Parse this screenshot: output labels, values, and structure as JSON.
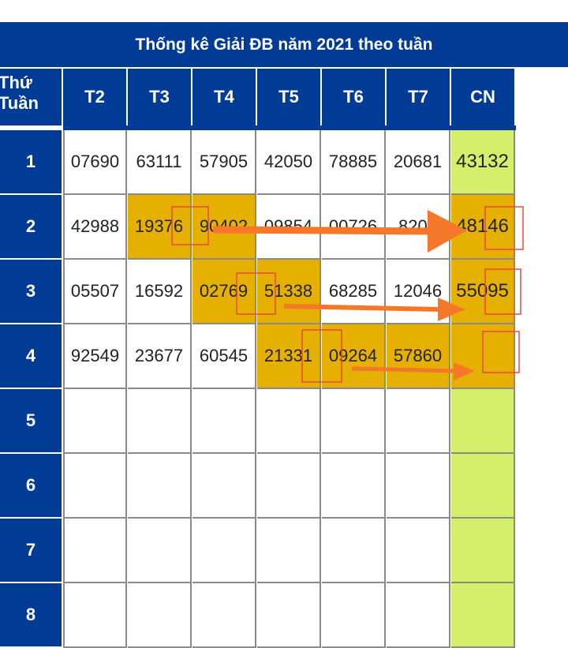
{
  "title": "Thống kê Giải ĐB năm 2021 theo tuần",
  "corner": {
    "line1": "Thứ",
    "line2": "Tuần"
  },
  "days": [
    "T2",
    "T3",
    "T4",
    "T5",
    "T6",
    "T7",
    "CN"
  ],
  "weeks": [
    "1",
    "2",
    "3",
    "4",
    "5",
    "6",
    "7",
    "8"
  ],
  "rows": [
    [
      "07690",
      "63111",
      "57905",
      "42050",
      "78885",
      "20681",
      "43132"
    ],
    [
      "42988",
      "19376",
      "90402",
      "09854",
      "00726",
      "8206",
      "48146"
    ],
    [
      "05507",
      "16592",
      "02769",
      "51338",
      "68285",
      "12046",
      "55095"
    ],
    [
      "92549",
      "23677",
      "60545",
      "21331",
      "09264",
      "57860",
      ""
    ],
    [
      "",
      "",
      "",
      "",
      "",
      "",
      ""
    ],
    [
      "",
      "",
      "",
      "",
      "",
      "",
      ""
    ],
    [
      "",
      "",
      "",
      "",
      "",
      "",
      ""
    ],
    [
      "",
      "",
      "",
      "",
      "",
      "",
      ""
    ]
  ],
  "highlighted": [
    [
      1,
      1
    ],
    [
      1,
      2
    ],
    [
      1,
      6
    ],
    [
      2,
      2
    ],
    [
      2,
      3
    ],
    [
      2,
      6
    ],
    [
      3,
      3
    ],
    [
      3,
      4
    ],
    [
      3,
      5
    ],
    [
      3,
      6
    ]
  ],
  "colors": {
    "header_blue": "#003b95",
    "cn_green": "#d4ef6a",
    "highlight_gold": "#e5b000",
    "arrow_orange": "#f5782a",
    "box_red": "#e8493e",
    "grid": "#8a8a8a"
  }
}
